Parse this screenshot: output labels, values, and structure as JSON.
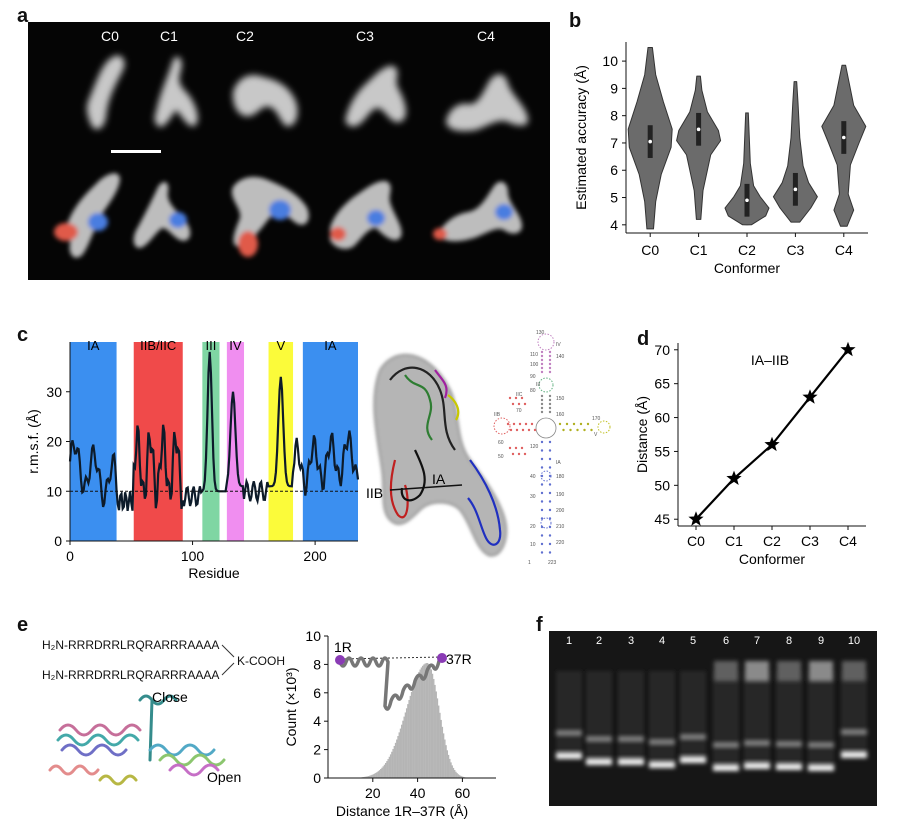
{
  "panels": {
    "a": {
      "letter": "a",
      "conformers": [
        "C0",
        "C1",
        "C2",
        "C3",
        "C4"
      ]
    },
    "b": {
      "letter": "b",
      "chart_data": {
        "type": "violin",
        "categories": [
          "C0",
          "C1",
          "C2",
          "C3",
          "C4"
        ],
        "medians": [
          7.05,
          7.5,
          4.9,
          5.3,
          7.2
        ],
        "ranges": [
          [
            3.85,
            10.5
          ],
          [
            4.2,
            9.45
          ],
          [
            4.0,
            8.1
          ],
          [
            4.1,
            9.25
          ],
          [
            3.95,
            9.85
          ]
        ],
        "ylabel": "Estimated accuracy (Å)",
        "xlabel": "Conformer",
        "ylim": [
          3.7,
          10.7
        ],
        "yticks": [
          "4",
          "5",
          "6",
          "7",
          "8",
          "9",
          "10"
        ]
      }
    },
    "c": {
      "letter": "c",
      "region_labels": [
        "IA",
        "IIB/IIC",
        "III",
        "IV",
        "V",
        "IA"
      ],
      "region_colors": [
        "#3b8ff0",
        "#f04a4a",
        "#7fd6a3",
        "#f08ef0",
        "#fbfb3a",
        "#3b8ff0"
      ],
      "chart_data": {
        "type": "line",
        "ylabel": "r.m.s.f. (Å)",
        "xlabel": "Residue",
        "xlim": [
          0,
          235
        ],
        "ylim": [
          0,
          40
        ],
        "xticks": [
          "0",
          "100",
          "200"
        ],
        "yticks": [
          "0",
          "10",
          "20",
          "30"
        ],
        "reference_line": 10
      },
      "structure_labels": [
        "IIB",
        "IA"
      ],
      "secondary_structure_labels": [
        "130",
        "140",
        "150",
        "160",
        "170",
        "180",
        "190",
        "200",
        "210",
        "220",
        "1",
        "10",
        "20",
        "30",
        "40",
        "50",
        "60",
        "70",
        "80",
        "90",
        "100",
        "110",
        "120",
        "IV",
        "III",
        "IIC",
        "IIB",
        "V",
        "IA",
        "223"
      ]
    },
    "d": {
      "letter": "d",
      "chart_data": {
        "type": "line",
        "categories": [
          "C0",
          "C1",
          "C2",
          "C3",
          "C4"
        ],
        "values": [
          45,
          51,
          56,
          63,
          70
        ],
        "series_label": "IA–IIB",
        "ylabel": "Distance (Å)",
        "xlabel": "Conformer",
        "ylim": [
          44,
          71
        ],
        "yticks": [
          "45",
          "50",
          "55",
          "60",
          "65",
          "70"
        ]
      }
    },
    "e": {
      "letter": "e",
      "sequence_1": "H₂N-RRRDRRLRQRARRRAAAA",
      "sequence_2": "H₂N-RRRDRRLRQRARRRAAAA",
      "k_label": "K-COOH",
      "close_label": "Close",
      "open_label": "Open",
      "chart_data": {
        "type": "bar",
        "xlabel": "Distance 1R–37R (Å)",
        "ylabel": "Count (×10³)",
        "xlim": [
          0,
          75
        ],
        "ylim": [
          0,
          10
        ],
        "xticks": [
          "20",
          "40",
          "60"
        ],
        "yticks": [
          "0",
          "2",
          "4",
          "6",
          "8",
          "10"
        ],
        "marker_left": "1R",
        "marker_right": "37R"
      }
    },
    "f": {
      "letter": "f",
      "lanes": [
        "1",
        "2",
        "3",
        "4",
        "5",
        "6",
        "7",
        "8",
        "9",
        "10"
      ]
    }
  }
}
